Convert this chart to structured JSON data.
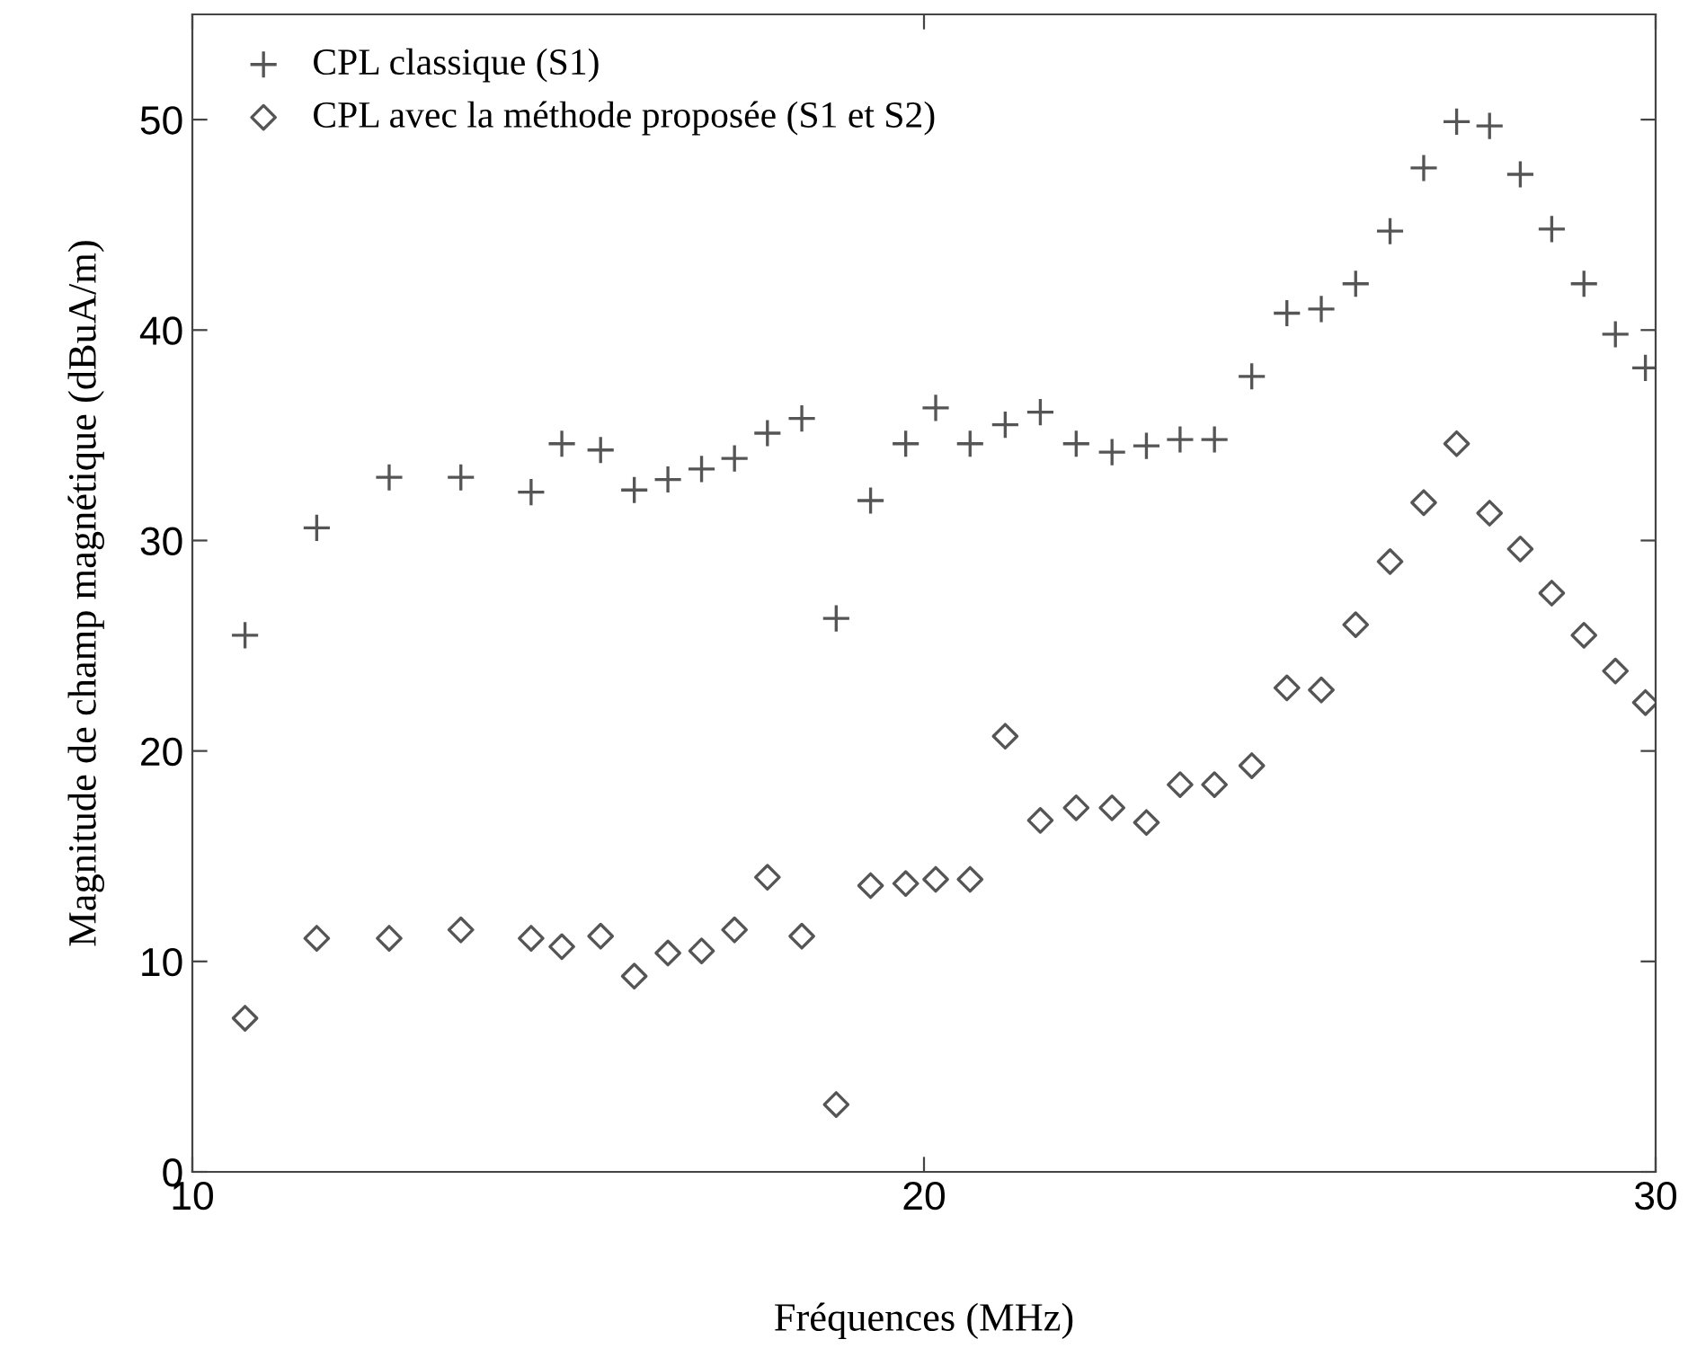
{
  "chart_data": {
    "type": "scatter",
    "xlabel": "Fréquences (MHz)",
    "ylabel": "Magnitude de champ magnétique (dBuA/m)",
    "xlim": [
      10,
      30
    ],
    "xticks": [
      10,
      20,
      30
    ],
    "ylim": [
      0,
      55
    ],
    "yticks": [
      0,
      10,
      20,
      30,
      40,
      50
    ],
    "grid": false,
    "legend": "top left",
    "x": [
      10.72,
      11.7,
      12.69,
      13.67,
      14.63,
      15.05,
      15.58,
      16.04,
      16.5,
      16.96,
      17.41,
      17.86,
      18.33,
      18.8,
      19.27,
      19.75,
      20.16,
      20.63,
      21.11,
      21.59,
      22.08,
      22.57,
      23.04,
      23.5,
      23.97,
      24.48,
      24.96,
      25.43,
      25.9,
      26.37,
      26.83,
      27.28,
      27.73,
      28.15,
      28.58,
      29.02,
      29.45,
      29.86
    ],
    "series": [
      {
        "name": "CPL classique (S1)",
        "color": "#555555",
        "marker": "cross",
        "values": [
          25.5,
          30.6,
          33.0,
          33.0,
          32.3,
          34.6,
          34.3,
          32.4,
          32.9,
          33.4,
          33.9,
          35.1,
          35.8,
          26.3,
          31.9,
          34.6,
          36.3,
          34.6,
          35.5,
          36.1,
          34.6,
          34.2,
          34.5,
          34.8,
          34.8,
          37.8,
          40.8,
          41.0,
          42.2,
          44.7,
          47.7,
          49.9,
          49.7,
          47.4,
          44.8,
          42.2,
          39.8,
          38.2
        ]
      },
      {
        "name": "CPL avec la méthode proposée (S1 et S2)",
        "color": "#555555",
        "marker": "diamond",
        "values": [
          7.3,
          11.1,
          11.1,
          11.5,
          11.1,
          10.7,
          11.2,
          9.3,
          10.4,
          10.5,
          11.5,
          14.0,
          11.2,
          3.2,
          13.6,
          13.7,
          13.9,
          13.9,
          20.7,
          16.7,
          17.3,
          17.3,
          16.6,
          18.4,
          18.4,
          19.3,
          23.0,
          22.9,
          26.0,
          29.0,
          31.8,
          34.6,
          31.3,
          29.6,
          27.5,
          25.5,
          23.8,
          22.3
        ]
      }
    ]
  }
}
